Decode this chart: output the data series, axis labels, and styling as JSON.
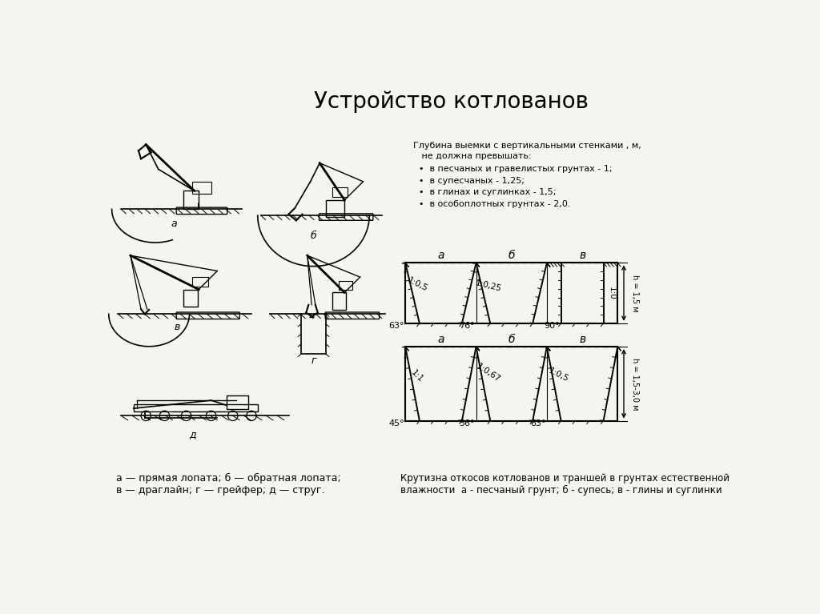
{
  "title": "Устройство котлованов",
  "title_fontsize": 20,
  "bg_color": "#f5f5f0",
  "text_color": "#000000",
  "info_header": "Глубина выемки с вертикальными стенками , м,\n   не должна превышать:",
  "info_items": [
    "в песчаных и гравелистых грунтах - 1;",
    "в супесчаных - 1,25;",
    "в глинах и суглинках - 1,5;",
    "в особоплотных грунтах - 2,0."
  ],
  "legend_left1": "а — прямая лопата; б — обратная лопата;",
  "legend_left2": "в — драглайн; г — грейфер; д — струг.",
  "legend_right1": "Крутизна откосов котлованов и траншей в грунтах естественной",
  "legend_right2": "влажности  а - песчаный грунт; б - супесь; в - глины и суглинки",
  "row1_labels": [
    "а",
    "б",
    "в"
  ],
  "row2_labels": [
    "а",
    "б",
    "в"
  ],
  "row1_angles": [
    "63°",
    "76°",
    "90°"
  ],
  "row2_angles": [
    "45°",
    "56°",
    "63°"
  ],
  "row1_ratios": [
    "1:0,5",
    "1:0,25",
    "1:0"
  ],
  "row2_ratios": [
    "1:1",
    "1:0,67",
    "1:0,5"
  ],
  "row1_slopes": [
    0.5,
    0.25,
    0.0
  ],
  "row2_slopes": [
    1.0,
    0.67,
    0.5
  ],
  "h_label1": "h = 1,5 м",
  "h_label2": "h = 1,5-3,0 м",
  "mach_labels": [
    "а",
    "б",
    "в",
    "г",
    "д"
  ]
}
